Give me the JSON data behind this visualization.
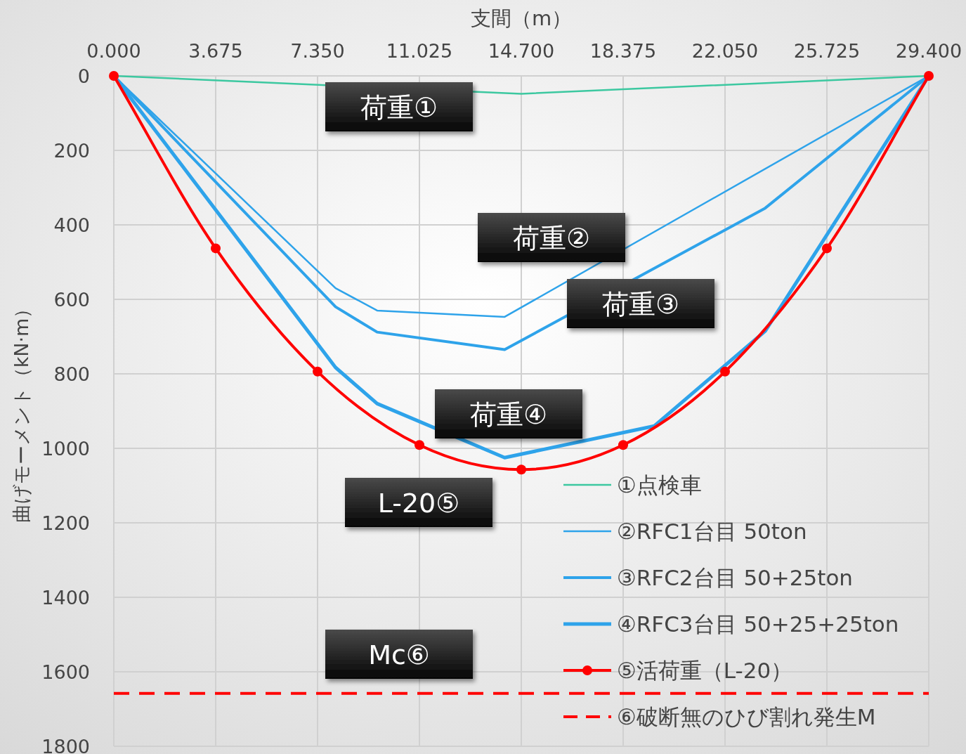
{
  "chart_data": {
    "type": "line",
    "xlabel": "支間（m）",
    "ylabel": "曲げモーメント（kN·m）",
    "xlim": [
      0,
      29.4
    ],
    "xticks": [
      {
        "value": 0,
        "label": "0.000"
      },
      3.675,
      {
        "value": 7.35,
        "label": "7.350"
      },
      11.025,
      {
        "value": 14.7,
        "label": "14.700"
      },
      18.375,
      {
        "value": 22.05,
        "label": "22.050"
      },
      25.725,
      {
        "value": 29.4,
        "label": "29.400"
      }
    ],
    "ylim": [
      1800,
      0
    ],
    "yticks": [
      0,
      200,
      400,
      600,
      800,
      1000,
      1200,
      1400,
      1600,
      1800
    ],
    "grid": true,
    "legend": "bottom right",
    "series": [
      {
        "name": "①点検車",
        "color": "#3cc8a0",
        "marker": "none",
        "x": [
          0,
          14.7,
          29.4
        ],
        "values": [
          0,
          48,
          0
        ]
      },
      {
        "name": "②RFC1台目 50ton",
        "color": "#2ea3ea",
        "marker": "none",
        "x": [
          0,
          8.0,
          9.5,
          14.1,
          29.4
        ],
        "values": [
          0,
          570,
          630,
          647,
          0
        ]
      },
      {
        "name": "③RFC2台目 50+25ton",
        "color": "#2ea3ea",
        "marker": "none",
        "x": [
          0,
          8.0,
          9.5,
          14.1,
          23.5,
          29.4
        ],
        "values": [
          0,
          620,
          688,
          735,
          355,
          0
        ]
      },
      {
        "name": "④RFC3台目 50+25+25ton",
        "color": "#2ea3ea",
        "marker": "none",
        "x": [
          0,
          8.0,
          9.5,
          14.1,
          19.5,
          23.5,
          29.4
        ],
        "values": [
          0,
          783,
          880,
          1025,
          940,
          685,
          0
        ]
      },
      {
        "name": "⑤活荷重（L-20）",
        "color": "#ff0000",
        "marker": "circle",
        "x": [
          0,
          3.675,
          7.35,
          11.025,
          14.7,
          18.375,
          22.05,
          25.725,
          29.4
        ],
        "values": [
          0,
          463,
          794,
          991,
          1057,
          991,
          794,
          463,
          0
        ]
      }
    ],
    "ref_lines": [
      {
        "axis": "y",
        "value": 1658,
        "label": "⑥破断無のひび割れ発生M",
        "color": "#ff0000",
        "line_style": "dashed"
      }
    ],
    "annotations": [
      "荷重①",
      "荷重②",
      "荷重③",
      "荷重④",
      "L-20⑤",
      "Mc⑥"
    ]
  }
}
